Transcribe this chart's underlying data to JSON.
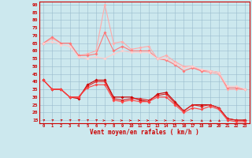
{
  "bg_color": "#cce8ee",
  "grid_color": "#99bbcc",
  "xlabel": "Vent moyen/en rafales ( km/h )",
  "x": [
    0,
    1,
    2,
    3,
    4,
    5,
    6,
    7,
    8,
    9,
    10,
    11,
    12,
    13,
    14,
    15,
    16,
    17,
    18,
    19,
    20,
    21,
    22,
    23
  ],
  "rafale1": [
    65,
    68,
    65,
    65,
    57,
    58,
    60,
    90,
    65,
    66,
    61,
    62,
    63,
    55,
    57,
    53,
    50,
    50,
    47,
    46,
    45,
    35,
    35,
    35
  ],
  "rafale2": [
    65,
    69,
    65,
    65,
    57,
    57,
    58,
    72,
    60,
    63,
    60,
    60,
    60,
    55,
    54,
    51,
    47,
    49,
    47,
    47,
    46,
    36,
    36,
    35
  ],
  "rafale3": [
    65,
    66,
    64,
    63,
    56,
    55,
    56,
    55,
    58,
    60,
    59,
    59,
    59,
    55,
    55,
    52,
    49,
    50,
    48,
    47,
    46,
    37,
    37,
    35
  ],
  "moyen1": [
    41,
    35,
    35,
    30,
    29,
    38,
    41,
    41,
    30,
    30,
    30,
    28,
    27,
    32,
    33,
    27,
    21,
    25,
    25,
    25,
    23,
    16,
    15,
    15
  ],
  "moyen2": [
    41,
    35,
    35,
    30,
    30,
    37,
    40,
    40,
    29,
    28,
    29,
    29,
    28,
    31,
    32,
    26,
    21,
    25,
    24,
    25,
    23,
    16,
    15,
    15
  ],
  "moyen3": [
    41,
    35,
    35,
    30,
    30,
    36,
    38,
    38,
    28,
    27,
    28,
    27,
    27,
    30,
    30,
    25,
    20,
    23,
    22,
    24,
    22,
    15,
    14,
    14
  ],
  "color_rafale1": "#ffaaaa",
  "color_rafale2": "#ff7777",
  "color_rafale3": "#ffcccc",
  "color_moyen1": "#cc0000",
  "color_moyen2": "#dd2222",
  "color_moyen3": "#ff4444",
  "ylim": [
    13,
    92
  ],
  "yticks": [
    15,
    20,
    25,
    30,
    35,
    40,
    45,
    50,
    55,
    60,
    65,
    70,
    75,
    80,
    85,
    90
  ],
  "wind_angles_deg": [
    45,
    45,
    45,
    45,
    45,
    45,
    45,
    0,
    0,
    0,
    0,
    0,
    0,
    0,
    0,
    0,
    0,
    0,
    315,
    315,
    315,
    315,
    315,
    0
  ]
}
